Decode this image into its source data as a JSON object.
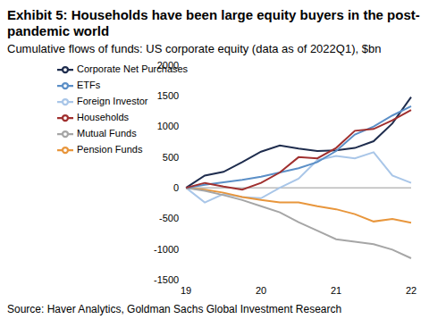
{
  "chart_data": {
    "type": "line",
    "title": "Exhibit 5: Households have been large equity buyers in the post-pandemic world",
    "subtitle": "Cumulative flows of funds: US corporate equity (data as of 2022Q1), $bn",
    "source": "Source: Haver Analytics, Goldman Sachs Global Investment Research",
    "categories": [
      "19",
      null,
      null,
      null,
      "20",
      null,
      null,
      null,
      "21",
      null,
      null,
      null,
      "22"
    ],
    "series": [
      {
        "name": "Corporate Net Purchases",
        "color": "#1f2d4e",
        "values": [
          0,
          200,
          260,
          420,
          590,
          690,
          640,
          600,
          610,
          650,
          760,
          1050,
          1480
        ]
      },
      {
        "name": "Foreign Investor",
        "color": "#a9c6e8",
        "values": [
          0,
          -240,
          -100,
          -150,
          -170,
          0,
          150,
          450,
          520,
          480,
          580,
          200,
          80
        ]
      },
      {
        "name": "Pension Funds",
        "color": "#e8963c",
        "values": [
          0,
          -30,
          -80,
          -150,
          -200,
          -240,
          -240,
          -300,
          -350,
          -430,
          -550,
          -510,
          -570
        ]
      },
      {
        "name": "Mutual Funds",
        "color": "#a6a6a6",
        "values": [
          0,
          -50,
          -120,
          -200,
          -300,
          -400,
          -560,
          -700,
          -840,
          -880,
          -920,
          -1010,
          -1150
        ]
      },
      {
        "name": "ETFs",
        "color": "#5b8fc7",
        "values": [
          0,
          50,
          90,
          130,
          180,
          250,
          320,
          420,
          600,
          870,
          1000,
          1180,
          1330
        ]
      },
      {
        "name": "Households",
        "color": "#a0302f",
        "values": [
          0,
          80,
          20,
          -30,
          80,
          250,
          500,
          480,
          650,
          930,
          960,
          1100,
          1270
        ]
      }
    ],
    "ylim": [
      -1500,
      2000
    ],
    "yticks": [
      -1500,
      -1000,
      -500,
      0,
      500,
      1000,
      1500,
      2000
    ],
    "grid": false,
    "legend": "upper left"
  }
}
